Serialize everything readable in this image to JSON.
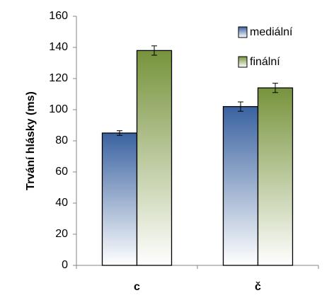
{
  "chart_data": {
    "type": "bar",
    "y_label": "Trvání hlásky (ms)",
    "categories": [
      "c",
      "č"
    ],
    "series": [
      {
        "name": "mediální",
        "color": "#3a62a0",
        "values": [
          85,
          102
        ],
        "errors": [
          1.5,
          3
        ]
      },
      {
        "name": "finální",
        "color": "#77933c",
        "values": [
          138,
          114
        ],
        "errors": [
          3,
          3
        ]
      }
    ],
    "ylim": [
      0,
      160
    ],
    "yticks": [
      0,
      20,
      40,
      60,
      80,
      100,
      120,
      140,
      160
    ],
    "grid": false,
    "legend": "top-right"
  }
}
